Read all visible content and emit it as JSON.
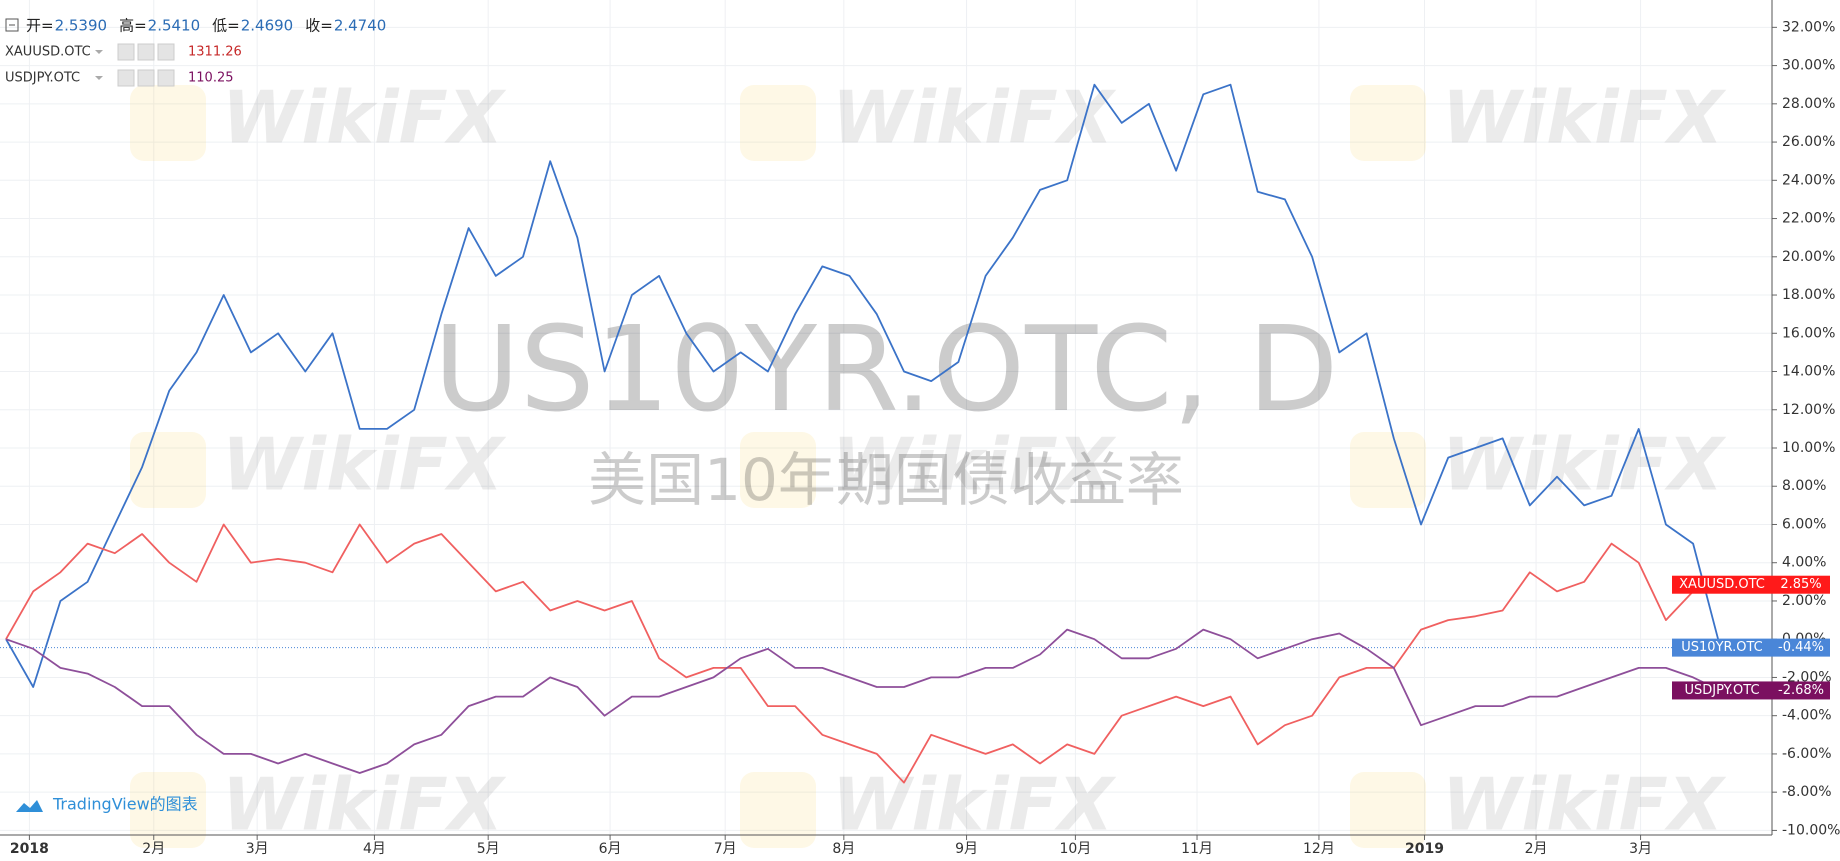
{
  "header": {
    "ohlc": [
      {
        "label": "开=",
        "value": "2.5390"
      },
      {
        "label": "高=",
        "value": "2.5410"
      },
      {
        "label": "低=",
        "value": "2.4690"
      },
      {
        "label": "收=",
        "value": "2.4740"
      }
    ],
    "legend": [
      {
        "name": "XAUUSD.OTC",
        "value": "1311.26",
        "color": "#c62828"
      },
      {
        "name": "USDJPY.OTC",
        "value": "110.25",
        "color": "#7b1060"
      }
    ],
    "watermark": "WikiFX",
    "branding": "TradingView的图表"
  },
  "chart_data": {
    "type": "line",
    "title": "US10YR.OTC, D",
    "subtitle": "美国10年期国债收益率",
    "xlim": [
      0,
      64.9
    ],
    "ylim": [
      -10.24,
      33.43
    ],
    "grid": true,
    "xticks": [
      {
        "value": 0.86,
        "label": "2018"
      },
      {
        "value": 5.43,
        "label": "2月"
      },
      {
        "value": 9.23,
        "label": "3月"
      },
      {
        "value": 13.54,
        "label": "4月"
      },
      {
        "value": 17.72,
        "label": "5月"
      },
      {
        "value": 22.2,
        "label": "6月"
      },
      {
        "value": 26.43,
        "label": "7月"
      },
      {
        "value": 30.79,
        "label": "8月"
      },
      {
        "value": 35.3,
        "label": "9月"
      },
      {
        "value": 39.3,
        "label": "10月"
      },
      {
        "value": 43.77,
        "label": "11月"
      },
      {
        "value": 48.25,
        "label": "12月"
      },
      {
        "value": 52.13,
        "label": "2019"
      },
      {
        "value": 56.23,
        "label": "2月"
      },
      {
        "value": 60.07,
        "label": "3月"
      }
    ],
    "yticks": [
      {
        "value": 32,
        "label": "32.00%"
      },
      {
        "value": 30,
        "label": "30.00%"
      },
      {
        "value": 28,
        "label": "28.00%"
      },
      {
        "value": 26,
        "label": "26.00%"
      },
      {
        "value": 24,
        "label": "24.00%"
      },
      {
        "value": 22,
        "label": "22.00%"
      },
      {
        "value": 20,
        "label": "20.00%"
      },
      {
        "value": 18,
        "label": "18.00%"
      },
      {
        "value": 16,
        "label": "16.00%"
      },
      {
        "value": 14,
        "label": "14.00%"
      },
      {
        "value": 12,
        "label": "12.00%"
      },
      {
        "value": 10,
        "label": "10.00%"
      },
      {
        "value": 8,
        "label": "8.00%"
      },
      {
        "value": 6,
        "label": "6.00%"
      },
      {
        "value": 4,
        "label": "4.00%"
      },
      {
        "value": 2,
        "label": "2.00%"
      },
      {
        "value": 0,
        "label": "0.00%"
      },
      {
        "value": -2,
        "label": "-2.00%"
      },
      {
        "value": -4,
        "label": "-4.00%"
      },
      {
        "value": -6,
        "label": "-6.00%"
      },
      {
        "value": -8,
        "label": "-8.00%"
      },
      {
        "value": -10,
        "label": "-10.00%"
      }
    ],
    "series": [
      {
        "name": "US10YR.OTC",
        "color": "#3b73c8",
        "label_color": "#4a86d8",
        "values": [
          0,
          -2.5,
          2,
          3,
          6,
          9,
          13,
          15,
          18,
          15,
          16,
          14,
          16,
          11,
          11,
          12,
          17,
          21.5,
          19,
          20,
          25,
          21,
          14,
          18,
          19,
          16,
          14,
          15,
          14,
          17,
          19.5,
          19,
          17,
          14,
          13.5,
          14.5,
          19,
          21,
          23.5,
          24,
          29,
          27,
          28,
          24.5,
          28.5,
          29,
          23.4,
          23,
          20,
          15,
          16,
          10.5,
          6,
          9.5,
          10,
          10.5,
          7,
          8.5,
          7,
          7.5,
          11,
          6,
          5,
          -0.44
        ],
        "value_labels": [
          null,
          null,
          null,
          null,
          null,
          null,
          null,
          null,
          null,
          null,
          null,
          null,
          null,
          null,
          null,
          null,
          null,
          null,
          null,
          null,
          null,
          null,
          null,
          null,
          null,
          null,
          null,
          null,
          null,
          null,
          null,
          null,
          null,
          null,
          null,
          null,
          null,
          null,
          null,
          null,
          null,
          null,
          null,
          null,
          null,
          null,
          null,
          null,
          null,
          null,
          null,
          null,
          null,
          null,
          null,
          null,
          null,
          null,
          null,
          null,
          null,
          null,
          null,
          "-0.44%"
        ]
      },
      {
        "name": "XAUUSD.OTC",
        "color": "#f06060",
        "label_color": "#ff1a1a",
        "values": [
          0,
          2.5,
          3.5,
          5,
          4.5,
          5.5,
          4,
          3,
          6,
          4,
          4.2,
          4,
          3.5,
          6,
          4,
          5,
          5.5,
          4,
          2.5,
          3,
          1.5,
          2,
          1.5,
          2,
          -1,
          -2,
          -1.5,
          -1.5,
          -3.5,
          -3.5,
          -5,
          -5.5,
          -6,
          -7.5,
          -5,
          -5.5,
          -6,
          -5.5,
          -6.5,
          -5.5,
          -6,
          -4,
          -3.5,
          -3,
          -3.5,
          -3,
          -5.5,
          -4.5,
          -4,
          -2,
          -1.5,
          -1.5,
          0.5,
          1,
          1.2,
          1.5,
          3.5,
          2.5,
          3,
          5,
          4,
          1,
          2.5,
          2.85
        ],
        "value_labels": [
          null,
          null,
          null,
          null,
          null,
          null,
          null,
          null,
          null,
          null,
          null,
          null,
          null,
          null,
          null,
          null,
          null,
          null,
          null,
          null,
          null,
          null,
          null,
          null,
          null,
          null,
          null,
          null,
          null,
          null,
          null,
          null,
          null,
          null,
          null,
          null,
          null,
          null,
          null,
          null,
          null,
          null,
          null,
          null,
          null,
          null,
          null,
          null,
          null,
          null,
          null,
          null,
          null,
          null,
          null,
          null,
          null,
          null,
          null,
          null,
          null,
          null,
          null,
          "2.85%"
        ]
      },
      {
        "name": "USDJPY.OTC",
        "color": "#8e4f9a",
        "label_color": "#7b1060",
        "values": [
          0,
          -0.5,
          -1.5,
          -1.8,
          -2.5,
          -3.5,
          -3.5,
          -5,
          -6,
          -6,
          -6.5,
          -6,
          -6.5,
          -7,
          -6.5,
          -5.5,
          -5,
          -3.5,
          -3,
          -3,
          -2,
          -2.5,
          -4,
          -3,
          -3,
          -2.5,
          -2,
          -1,
          -0.5,
          -1.5,
          -1.5,
          -2,
          -2.5,
          -2.5,
          -2,
          -2,
          -1.5,
          -1.5,
          -0.8,
          0.5,
          0,
          -1,
          -1,
          -0.5,
          0.5,
          0,
          -1,
          -0.5,
          0,
          0.3,
          -0.5,
          -1.5,
          -4.5,
          -4,
          -3.5,
          -3.5,
          -3,
          -3,
          -2.5,
          -2,
          -1.5,
          -1.5,
          -2,
          -2.68
        ],
        "value_labels": [
          null,
          null,
          null,
          null,
          null,
          null,
          null,
          null,
          null,
          null,
          null,
          null,
          null,
          null,
          null,
          null,
          null,
          null,
          null,
          null,
          null,
          null,
          null,
          null,
          null,
          null,
          null,
          null,
          null,
          null,
          null,
          null,
          null,
          null,
          null,
          null,
          null,
          null,
          null,
          null,
          null,
          null,
          null,
          null,
          null,
          null,
          null,
          null,
          null,
          null,
          null,
          null,
          null,
          null,
          null,
          null,
          null,
          null,
          null,
          null,
          null,
          null,
          null,
          "-2.68%"
        ]
      }
    ]
  }
}
